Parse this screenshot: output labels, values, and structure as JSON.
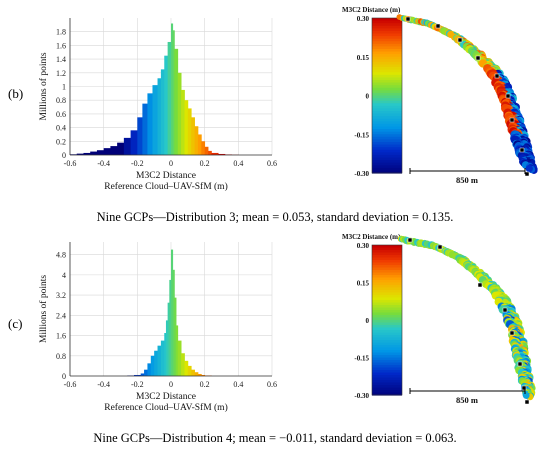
{
  "panels": [
    {
      "label": "(b)",
      "caption": "Nine GCPs—Distribution 3; mean = 0.053, standard deviation = 0.135.",
      "histogram": {
        "ylabel": "Millions of points",
        "xlabel_line1": "M3C2 Distance",
        "xlabel_line2": "Reference Cloud–UAV-SfM (m)",
        "x_ticks": [
          "-0.6",
          "-0.4",
          "-0.2",
          "0",
          "0.2",
          "0.4",
          "0.6"
        ],
        "y_ticks": [
          "0",
          "0.2",
          "0.4",
          "0.6",
          "0.8",
          "1",
          "1.2",
          "1.4",
          "1.6",
          "1.8"
        ]
      },
      "map": {
        "colorbar_title": "M3C2 Distance (m)",
        "colorbar_ticks": [
          "0.30",
          "0.15",
          "0",
          "-0.15",
          "-0.30"
        ],
        "scale_label": "850 m"
      }
    },
    {
      "label": "(c)",
      "caption": "Nine GCPs—Distribution 4; mean = −0.011, standard deviation = 0.063.",
      "histogram": {
        "ylabel": "Millions of points",
        "xlabel_line1": "M3C2 Distance",
        "xlabel_line2": "Reference Cloud–UAV-SfM (m)",
        "x_ticks": [
          "-0.6",
          "-0.4",
          "-0.2",
          "0",
          "0.2",
          "0.4",
          "0.6"
        ],
        "y_ticks": [
          "0",
          "0.8",
          "1.6",
          "2.4",
          "3.2",
          "4",
          "4.8"
        ]
      },
      "map": {
        "colorbar_title": "M3C2 Distance (m)",
        "colorbar_ticks": [
          "0.30",
          "0.15",
          "0",
          "-0.15",
          "-0.30"
        ],
        "scale_label": "850 m"
      }
    }
  ],
  "chart_data": [
    {
      "type": "bar",
      "ylabel": "Millions of points",
      "xlabel": "M3C2 Distance Reference Cloud–UAV-SfM (m)",
      "xlim": [
        -0.6,
        0.6
      ],
      "ylim": [
        0,
        2.0
      ],
      "grid": true,
      "x": [
        -0.6,
        -0.56,
        -0.52,
        -0.48,
        -0.44,
        -0.4,
        -0.36,
        -0.32,
        -0.28,
        -0.24,
        -0.2,
        -0.17,
        -0.14,
        -0.11,
        -0.08,
        -0.06,
        -0.04,
        -0.02,
        0.0,
        0.01,
        0.02,
        0.04,
        0.06,
        0.08,
        0.1,
        0.12,
        0.14,
        0.16,
        0.18,
        0.2,
        0.22,
        0.24,
        0.28,
        0.32,
        0.36,
        0.4
      ],
      "values": [
        0.01,
        0.02,
        0.03,
        0.05,
        0.07,
        0.1,
        0.13,
        0.18,
        0.25,
        0.36,
        0.55,
        0.75,
        0.9,
        1.02,
        1.12,
        1.25,
        1.45,
        1.65,
        1.92,
        1.82,
        1.55,
        1.2,
        0.95,
        0.8,
        0.68,
        0.55,
        0.42,
        0.3,
        0.2,
        0.12,
        0.06,
        0.03,
        0.015,
        0.008,
        0.004,
        0.0
      ]
    },
    {
      "type": "bar",
      "ylabel": "Millions of points",
      "xlabel": "M3C2 Distance Reference Cloud–UAV-SfM (m)",
      "xlim": [
        -0.6,
        0.6
      ],
      "ylim": [
        0,
        5.3
      ],
      "grid": true,
      "x": [
        -0.3,
        -0.26,
        -0.22,
        -0.18,
        -0.16,
        -0.14,
        -0.12,
        -0.1,
        -0.08,
        -0.06,
        -0.04,
        -0.03,
        -0.02,
        -0.01,
        0.0,
        0.01,
        0.02,
        0.03,
        0.04,
        0.06,
        0.08,
        0.1,
        0.12,
        0.14,
        0.16,
        0.18,
        0.2,
        0.24
      ],
      "values": [
        0.0,
        0.02,
        0.04,
        0.1,
        0.25,
        0.5,
        0.8,
        1.0,
        1.2,
        1.4,
        1.7,
        2.2,
        2.9,
        3.8,
        5.0,
        4.2,
        3.1,
        2.0,
        1.4,
        0.9,
        0.6,
        0.4,
        0.25,
        0.15,
        0.08,
        0.04,
        0.02,
        0.0
      ]
    }
  ]
}
